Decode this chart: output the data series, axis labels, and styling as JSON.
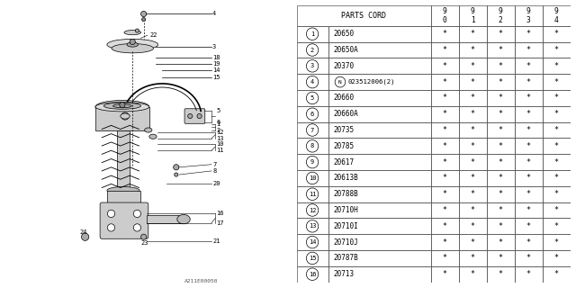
{
  "watermark": "A211E00050",
  "rows": [
    [
      "1",
      "20650"
    ],
    [
      "2",
      "20650A"
    ],
    [
      "3",
      "20370"
    ],
    [
      "4",
      "N023512006(2)"
    ],
    [
      "5",
      "20660"
    ],
    [
      "6",
      "20660A"
    ],
    [
      "7",
      "20735"
    ],
    [
      "8",
      "20785"
    ],
    [
      "9",
      "20617"
    ],
    [
      "10",
      "20613B"
    ],
    [
      "11",
      "20788B"
    ],
    [
      "12",
      "20710H"
    ],
    [
      "13",
      "20710I"
    ],
    [
      "14",
      "20710J"
    ],
    [
      "15",
      "20787B"
    ],
    [
      "16",
      "20713"
    ]
  ],
  "star": "*",
  "bg_color": "#ffffff",
  "line_color": "#000000",
  "year_headers": [
    "9\n0",
    "9\n1",
    "9\n2",
    "9\n3",
    "9\n4"
  ]
}
